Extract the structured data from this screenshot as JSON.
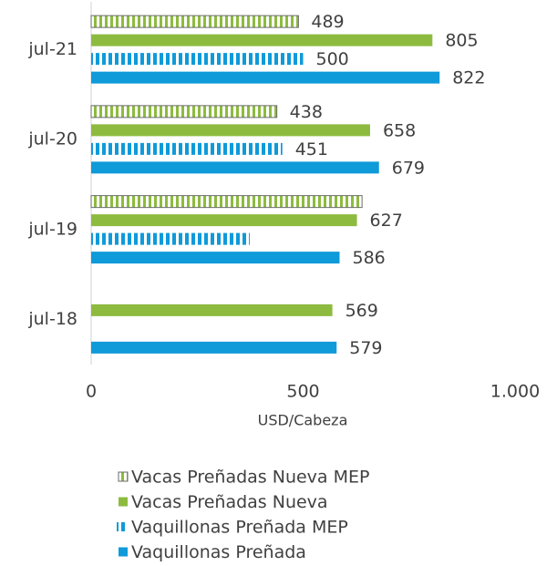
{
  "chart_data": {
    "type": "hbar",
    "categories": [
      "jul-21",
      "jul-20",
      "jul-19",
      "jul-18"
    ],
    "series": [
      {
        "name": "Vacas Preñadas Nueva MEP",
        "color": "#8dbb3f",
        "pattern": "hatch",
        "values": [
          489,
          438,
          639,
          null
        ],
        "value_labels": [
          "489",
          "438",
          null,
          null
        ]
      },
      {
        "name": "Vacas Preñadas Nueva",
        "color": "#8dbb3f",
        "pattern": "solid",
        "values": [
          805,
          658,
          627,
          569
        ],
        "value_labels": [
          "805",
          "658",
          "627",
          "569"
        ]
      },
      {
        "name": "Vaquillonas Preñada MEP",
        "color": "#0f9ad9",
        "pattern": "stripes",
        "values": [
          500,
          451,
          374,
          null
        ],
        "value_labels": [
          "500",
          "451",
          null,
          null
        ]
      },
      {
        "name": "Vaquillonas Preñada",
        "color": "#0f9ad9",
        "pattern": "solid",
        "values": [
          822,
          679,
          586,
          579
        ],
        "value_labels": [
          "822",
          "679",
          "586",
          "579"
        ]
      }
    ],
    "xlabel": "USD/Cabeza",
    "xlim": [
      0,
      1000
    ],
    "xticks": [
      0,
      500,
      {
        "value": 1000,
        "label": "1.000"
      }
    ],
    "legend": "bottom"
  }
}
